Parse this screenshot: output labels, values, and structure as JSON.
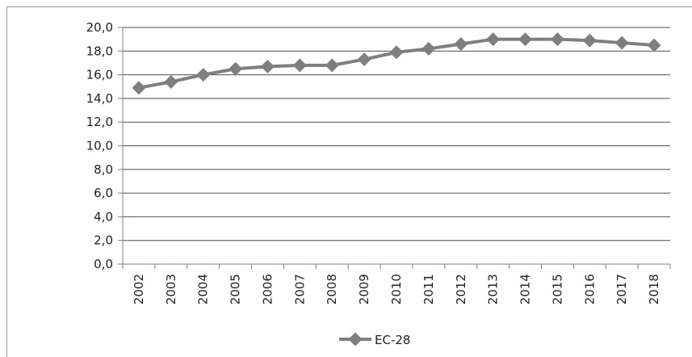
{
  "chart_data": {
    "type": "line",
    "title": "",
    "xlabel": "",
    "ylabel": "",
    "categories": [
      "2002",
      "2003",
      "2004",
      "2005",
      "2006",
      "2007",
      "2008",
      "2009",
      "2010",
      "2011",
      "2012",
      "2013",
      "2014",
      "2015",
      "2016",
      "2017",
      "2018"
    ],
    "series": [
      {
        "name": "ЕС-28",
        "values": [
          14.9,
          15.4,
          16.0,
          16.5,
          16.7,
          16.8,
          16.8,
          17.3,
          17.9,
          18.2,
          18.6,
          19.0,
          19.0,
          19.0,
          18.9,
          18.7,
          18.5
        ]
      }
    ],
    "ylim": [
      0,
      20
    ],
    "y_ticks": [
      "0,0",
      "2,0",
      "4,0",
      "6,0",
      "8,0",
      "10,0",
      "12,0",
      "14,0",
      "16,0",
      "18,0",
      "20,0"
    ],
    "grid": true,
    "legend_position": "bottom",
    "colors": {
      "series": "#7f7f7f",
      "grid": "#4d4d4d",
      "axis": "#7f7f7f"
    }
  }
}
